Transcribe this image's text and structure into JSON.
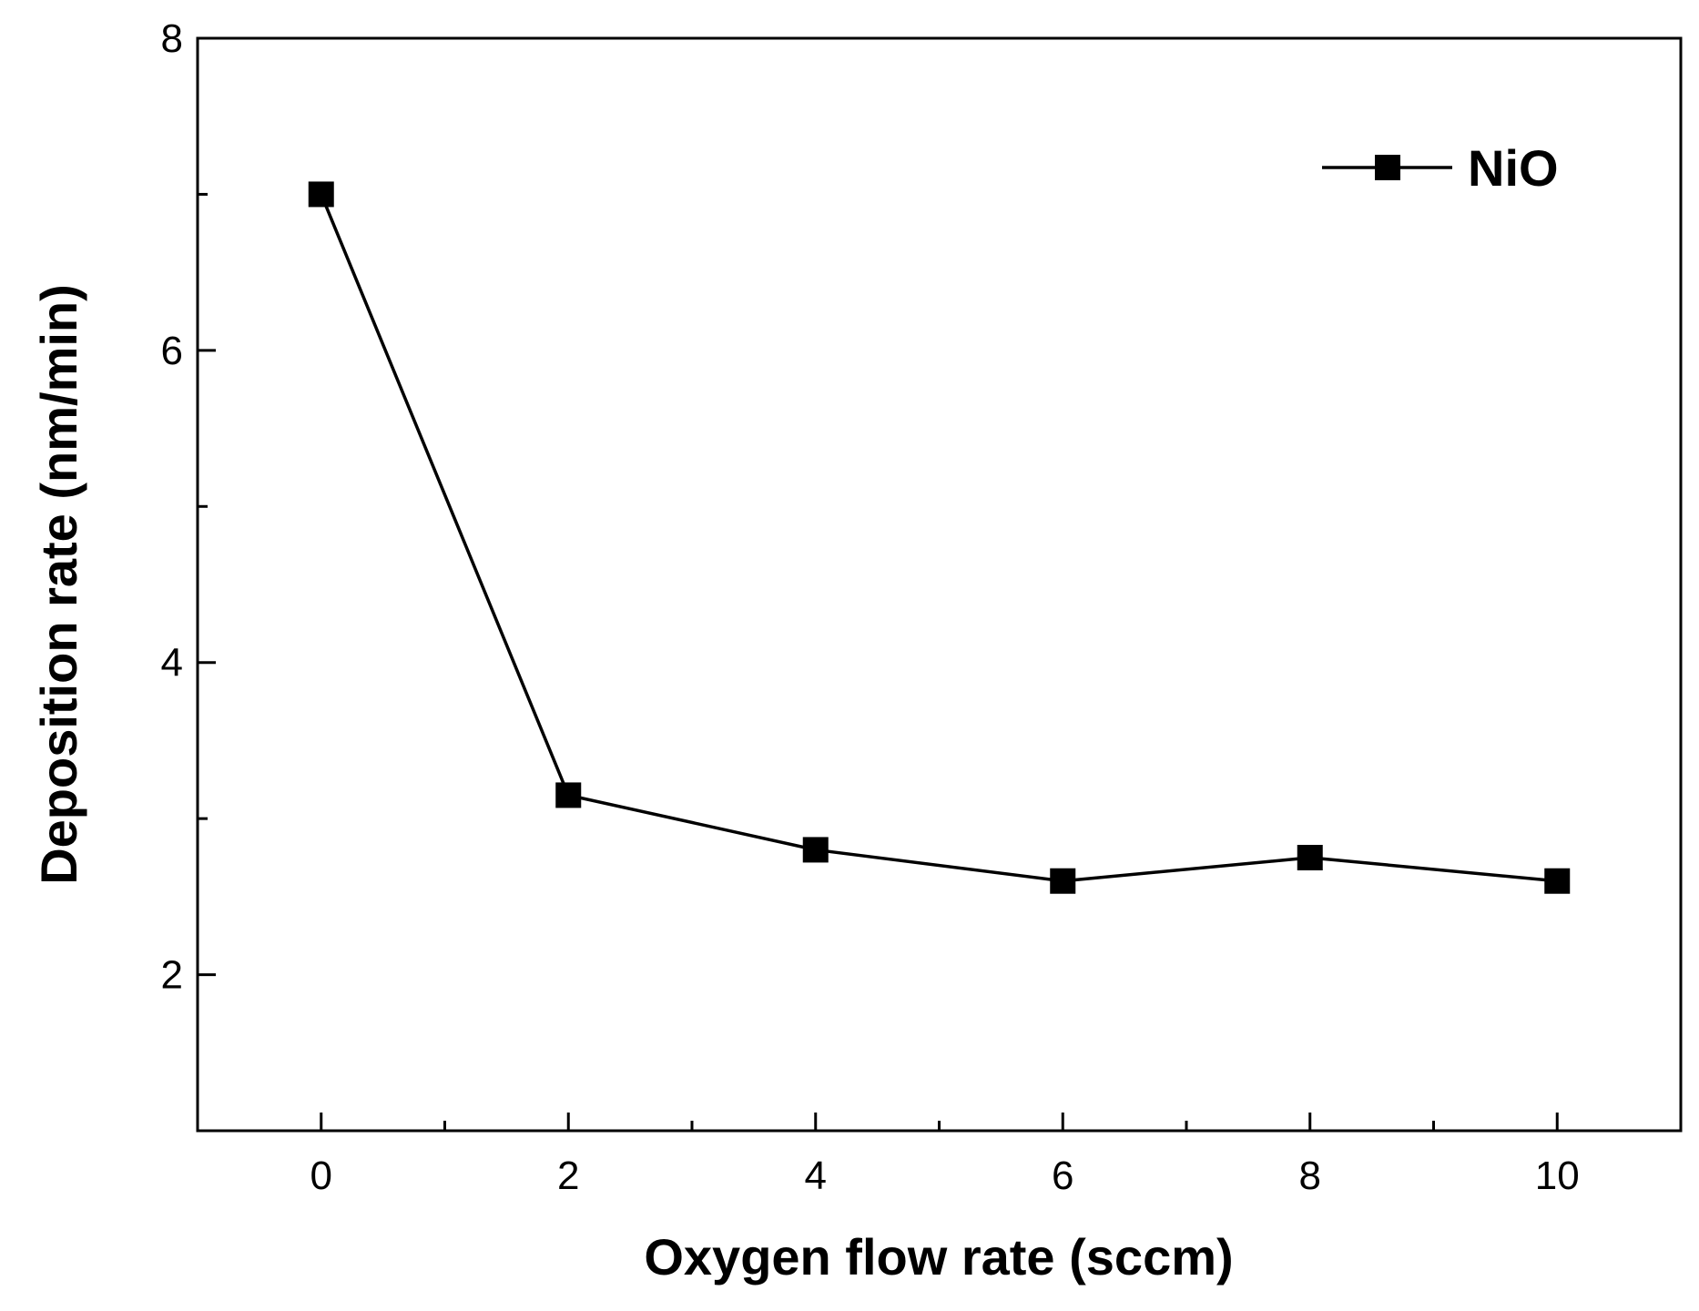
{
  "chart_data": {
    "type": "line",
    "title": "",
    "xlabel": "Oxygen flow rate (sccm)",
    "ylabel": "Deposition rate (nm/min)",
    "xlim": [
      -1,
      11
    ],
    "ylim": [
      1,
      8
    ],
    "x_ticks": [
      0,
      2,
      4,
      6,
      8,
      10
    ],
    "x_minor_ticks": [
      1,
      3,
      5,
      7,
      9
    ],
    "y_ticks": [
      2,
      4,
      6,
      8
    ],
    "y_minor_ticks": [
      1,
      3,
      5,
      7
    ],
    "grid": false,
    "legend_position": "top-right",
    "series": [
      {
        "name": "NiO",
        "marker": "square",
        "color": "#000000",
        "x": [
          0,
          2,
          4,
          6,
          8,
          10
        ],
        "y": [
          7.0,
          3.15,
          2.8,
          2.6,
          2.75,
          2.6
        ]
      }
    ]
  }
}
